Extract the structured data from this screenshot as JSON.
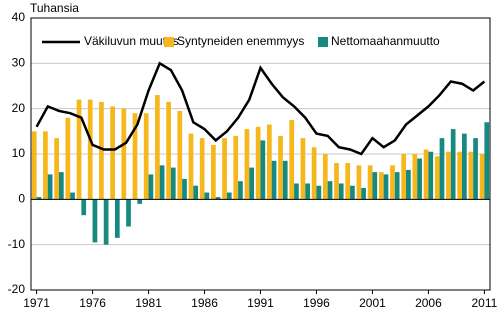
{
  "chart_data": {
    "type": "bar",
    "y_label": "Tuhansia",
    "x": [
      1971,
      1972,
      1973,
      1974,
      1975,
      1976,
      1977,
      1978,
      1979,
      1980,
      1981,
      1982,
      1983,
      1984,
      1985,
      1986,
      1987,
      1988,
      1989,
      1990,
      1991,
      1992,
      1993,
      1994,
      1995,
      1996,
      1997,
      1998,
      1999,
      2000,
      2001,
      2002,
      2003,
      2004,
      2005,
      2006,
      2007,
      2008,
      2009,
      2010,
      2011
    ],
    "xlim": [
      1970.5,
      2011.5
    ],
    "xticks": [
      1971,
      1976,
      1981,
      1986,
      1991,
      1996,
      2001,
      2006,
      2011
    ],
    "ylim": [
      -20,
      40
    ],
    "yticks": [
      -20,
      -10,
      0,
      10,
      20,
      30,
      40
    ],
    "grid": true,
    "legend": "top",
    "series": [
      {
        "name": "Väkiluvun muutos",
        "type": "line",
        "color": "#000000",
        "values": [
          16,
          20.5,
          19.5,
          19,
          18,
          12,
          11,
          11,
          12.5,
          16.5,
          24,
          30,
          28.5,
          24,
          17,
          15.5,
          13,
          15,
          18,
          22,
          29,
          25.5,
          22.5,
          20.5,
          18,
          14.5,
          14,
          11.5,
          11,
          10,
          13.5,
          11.5,
          13,
          16.5,
          18.5,
          20.5,
          23,
          26,
          25.5,
          24,
          26
        ]
      },
      {
        "name": "Syntyneiden enemmyys",
        "type": "bar",
        "color": "#f5b71b",
        "values": [
          15,
          15,
          13.5,
          18,
          22,
          22,
          21.5,
          20.5,
          20,
          19,
          19,
          23,
          21.5,
          19.5,
          14.5,
          13.5,
          12,
          13.5,
          14,
          15.5,
          16,
          16.5,
          14,
          17.5,
          13.5,
          11.5,
          10,
          8,
          8,
          7.5,
          7.5,
          6,
          7.5,
          10,
          10,
          11,
          9.5,
          10.5,
          10.5,
          10.5,
          10
        ]
      },
      {
        "name": "Nettomaahanmuutto",
        "type": "bar",
        "color": "#168a80",
        "values": [
          0.5,
          5.5,
          6,
          1.5,
          -3.5,
          -9.5,
          -10,
          -8.5,
          -6,
          -1,
          5.5,
          7.5,
          7,
          4.5,
          3,
          1.5,
          0.5,
          1.5,
          4,
          7,
          13,
          8.5,
          8.5,
          3.5,
          3.5,
          3,
          4,
          3.5,
          3,
          2.5,
          6,
          5.5,
          6,
          6.5,
          9,
          10.5,
          13.5,
          15.5,
          14.5,
          13.5,
          17
        ]
      }
    ]
  }
}
